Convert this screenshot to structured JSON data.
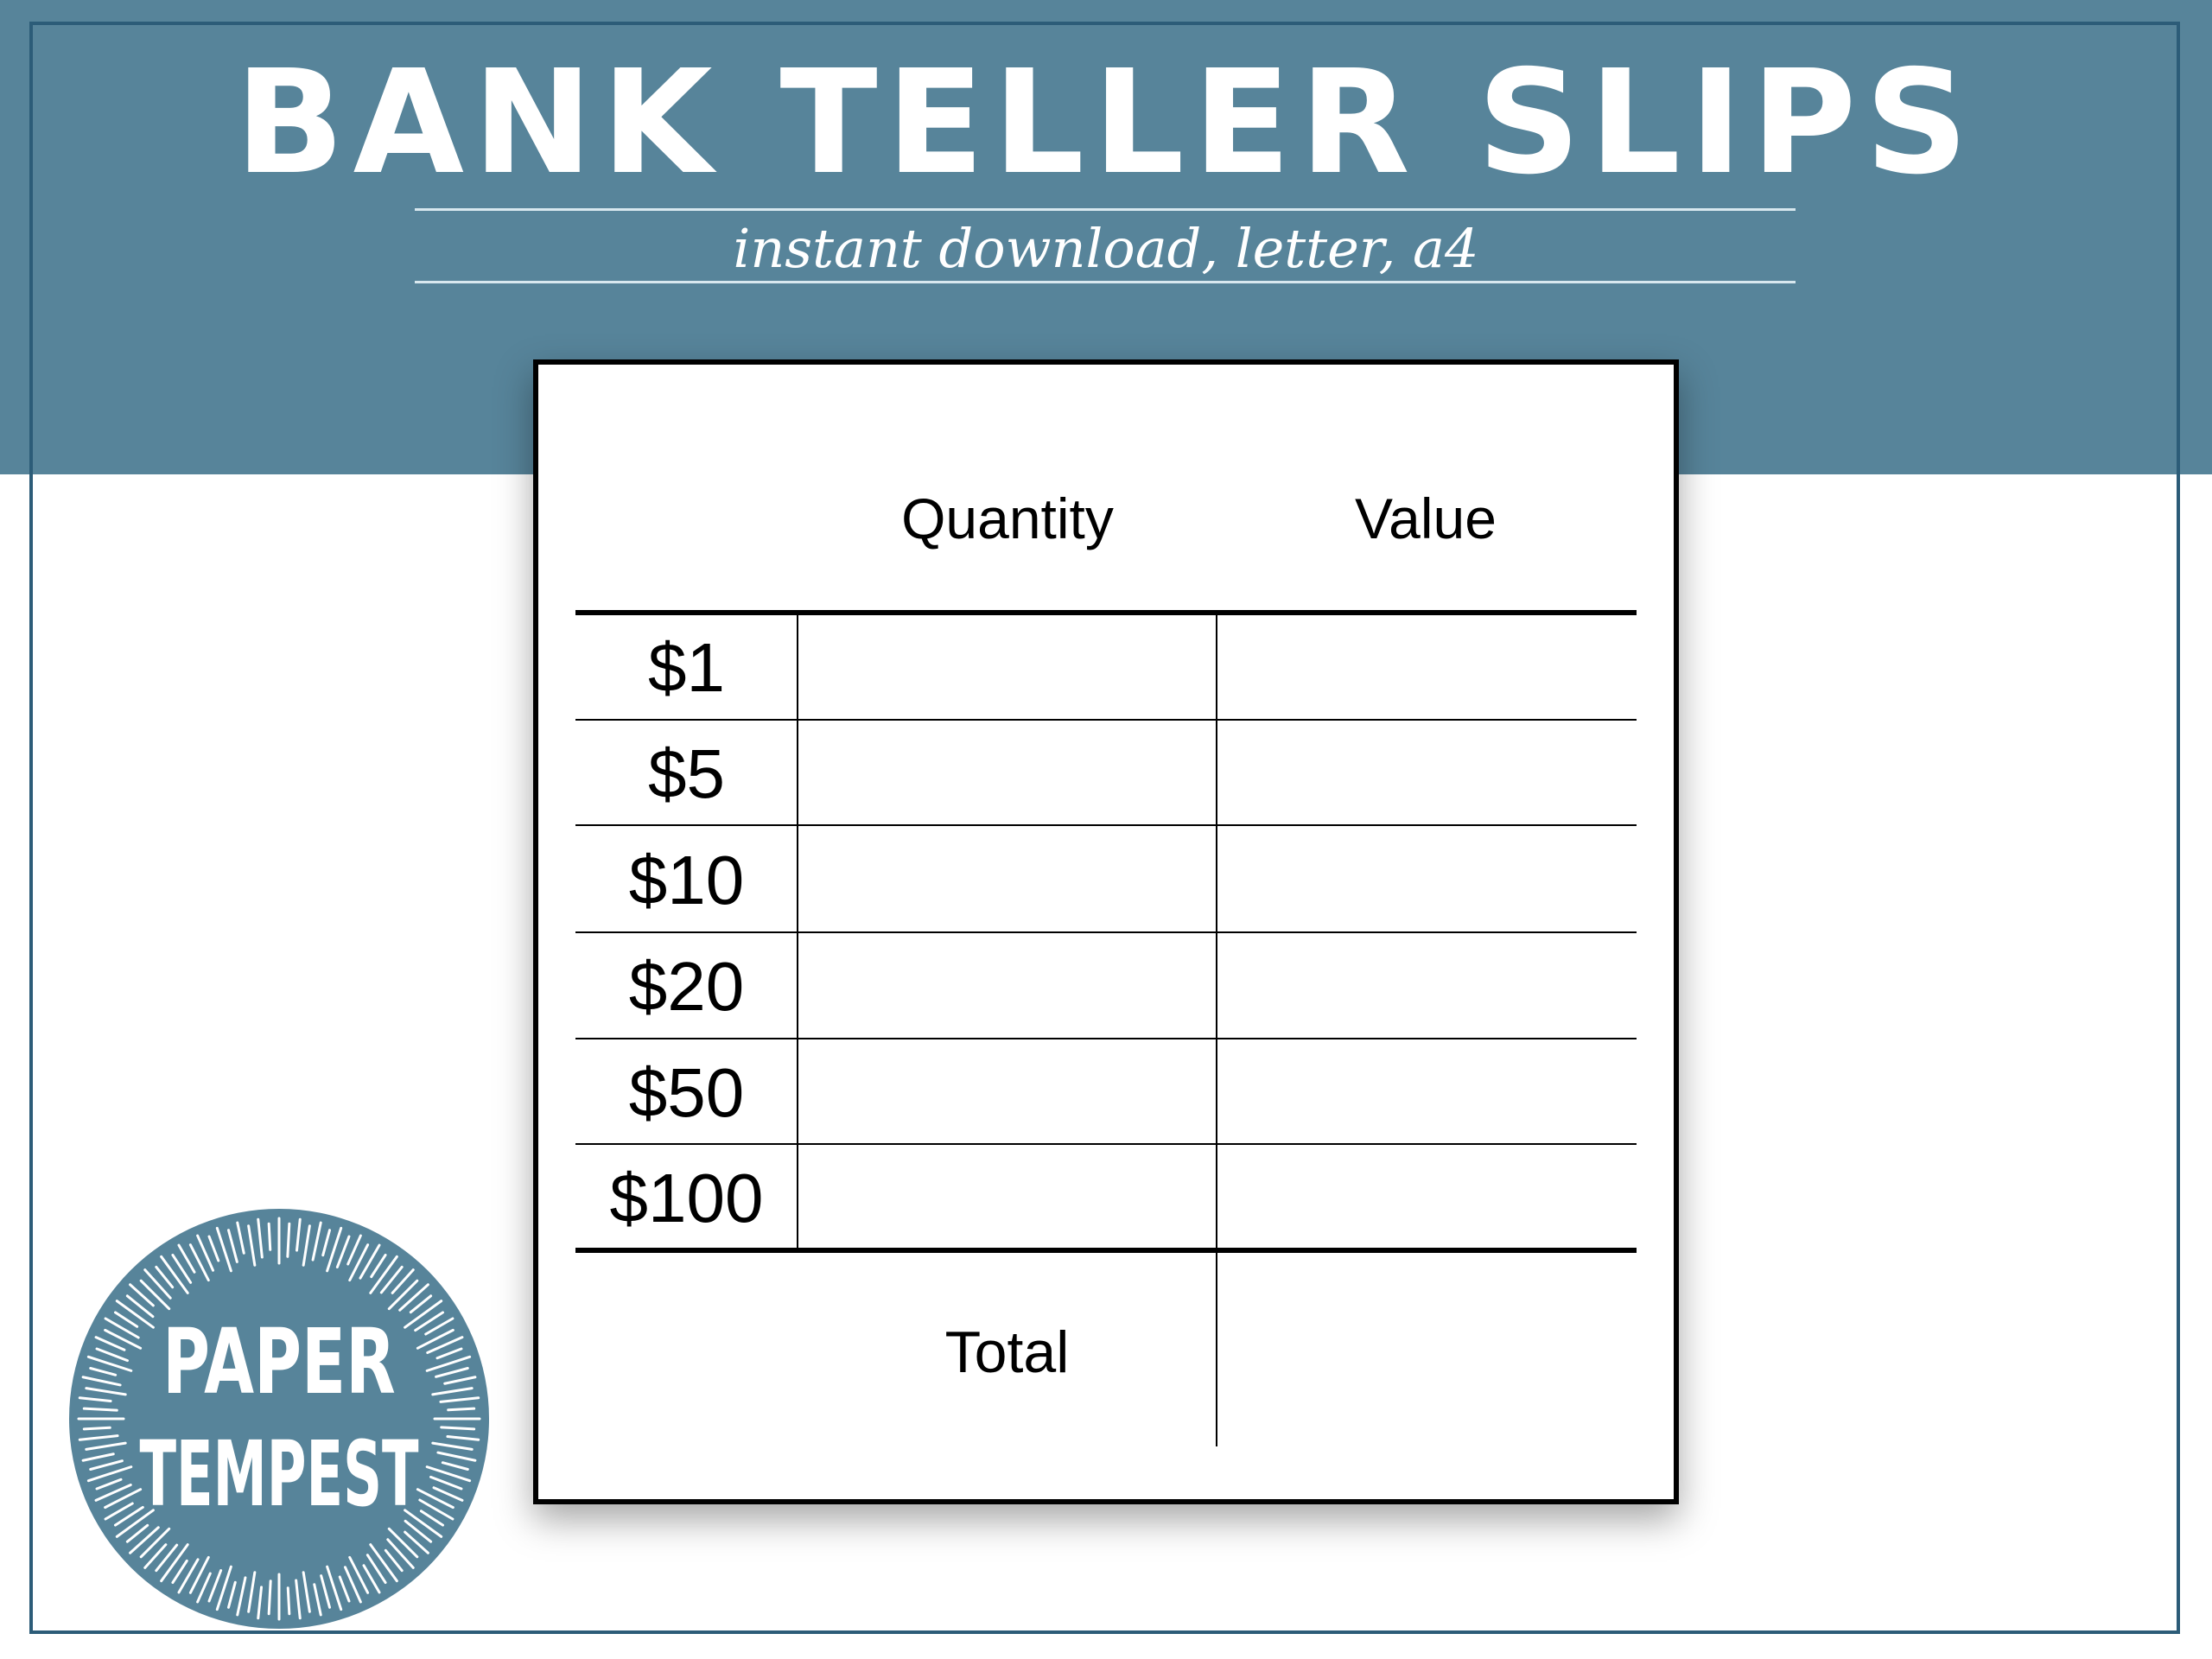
{
  "header": {
    "title": "BANK TELLER SLIPS",
    "subtitle": "instant download, letter, a4"
  },
  "slip": {
    "columns": [
      "Quantity",
      "Value"
    ],
    "rows": [
      {
        "label": "$1"
      },
      {
        "label": "$5"
      },
      {
        "label": "$10"
      },
      {
        "label": "$20"
      },
      {
        "label": "$50"
      },
      {
        "label": "$100"
      }
    ],
    "total_label": "Total"
  },
  "logo": {
    "line1": "PAPER",
    "line2": "TEMPEST"
  },
  "colors": {
    "band": "#57849a",
    "frame": "#2c5c78",
    "logo": "#57849a"
  }
}
